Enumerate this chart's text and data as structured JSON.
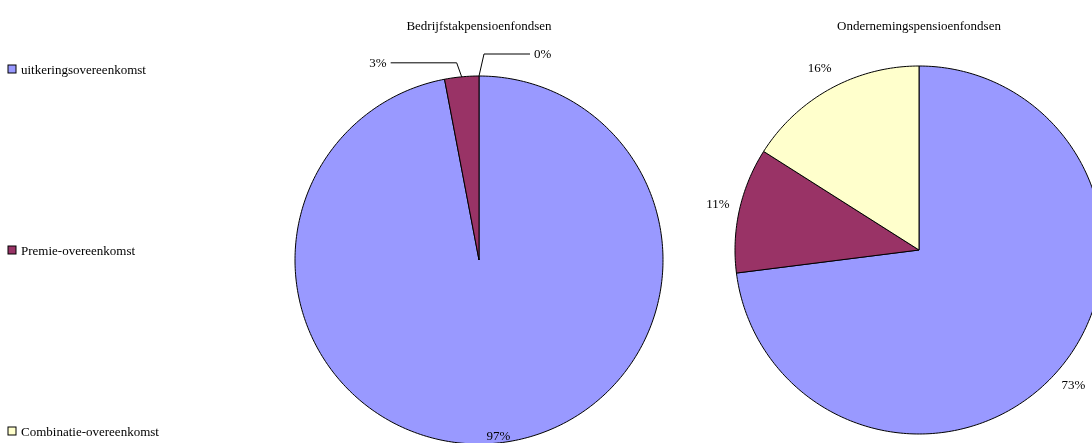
{
  "chart_data": [
    {
      "type": "pie",
      "title": "Bedrijfstakpensioenfondsen",
      "categories": [
        "uitkeringsovereenkomst",
        "Premie-overeenkomst",
        "Combinatie-overeenkomst"
      ],
      "values": [
        97,
        3,
        0
      ],
      "value_labels": [
        "97%",
        "3%",
        "0%"
      ],
      "colors": [
        "#9999ff",
        "#993366",
        "#ffffcc"
      ],
      "legend": "left"
    },
    {
      "type": "pie",
      "title": "Ondernemingspensioenfondsen",
      "categories": [
        null,
        null,
        null
      ],
      "values": [
        73,
        11,
        16
      ],
      "value_labels": [
        "73%",
        "11%",
        "16%"
      ],
      "colors": [
        "#9999ff",
        "#993366",
        "#ffffcc"
      ]
    }
  ]
}
